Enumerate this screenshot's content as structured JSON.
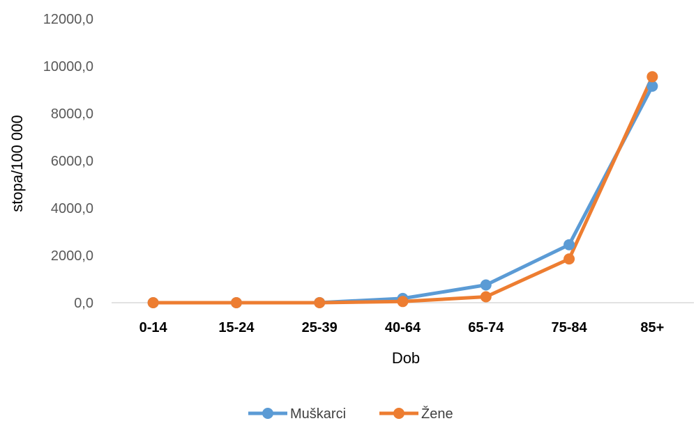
{
  "chart_data": {
    "type": "line",
    "title": "",
    "xlabel": "Dob",
    "ylabel": "stopa/100 000",
    "categories": [
      "0-14",
      "15-24",
      "25-39",
      "40-64",
      "65-74",
      "75-84",
      "85+"
    ],
    "ylim": [
      0,
      12000
    ],
    "yticks": [
      0,
      2000,
      4000,
      6000,
      8000,
      10000,
      12000
    ],
    "ytick_labels": [
      "0,0",
      "2000,0",
      "4000,0",
      "6000,0",
      "8000,0",
      "10000,0",
      "12000,0"
    ],
    "grid": false,
    "legend_position": "bottom",
    "series": [
      {
        "name": "Muškarci",
        "color": "#5B9BD5",
        "values": [
          0,
          0,
          5,
          180,
          750,
          2450,
          9150
        ]
      },
      {
        "name": "Žene",
        "color": "#ED7D31",
        "values": [
          0,
          0,
          0,
          50,
          250,
          1850,
          9550
        ]
      }
    ]
  }
}
